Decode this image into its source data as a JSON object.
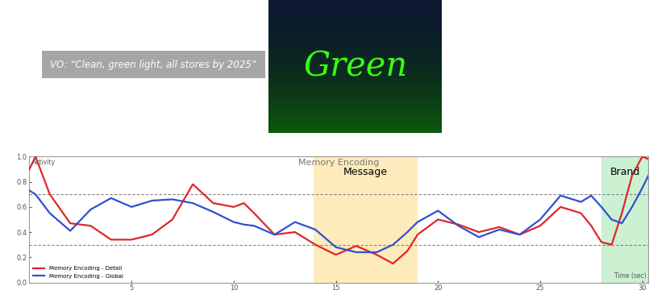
{
  "voiceover": "VO: “Clean, green light, all stores by 2025”",
  "image_text": "Green",
  "chart_data": {
    "type": "line",
    "title": "Memory Encoding",
    "y_label": "Activity",
    "x_label": "Time (sec)",
    "x": [
      0,
      0.3,
      1,
      2,
      3,
      4,
      5,
      6,
      7,
      8,
      9,
      10,
      10.5,
      11,
      12,
      13,
      14,
      15,
      16,
      17,
      17.8,
      18.5,
      19,
      20,
      21,
      22,
      23,
      24,
      25,
      26,
      27,
      27.5,
      28,
      28.5,
      29,
      29.5,
      30,
      30.3
    ],
    "series": [
      {
        "name": "Memory Encoding - Detail",
        "color": "#e0262b",
        "values": [
          0.9,
          1.0,
          0.7,
          0.47,
          0.45,
          0.34,
          0.34,
          0.38,
          0.5,
          0.78,
          0.63,
          0.6,
          0.63,
          0.55,
          0.38,
          0.4,
          0.3,
          0.22,
          0.29,
          0.22,
          0.15,
          0.25,
          0.38,
          0.5,
          0.46,
          0.4,
          0.44,
          0.38,
          0.45,
          0.6,
          0.55,
          0.45,
          0.32,
          0.3,
          0.55,
          0.85,
          1.0,
          0.98
        ]
      },
      {
        "name": "Memory Encoding - Global",
        "color": "#3050d0",
        "values": [
          0.73,
          0.7,
          0.55,
          0.41,
          0.58,
          0.67,
          0.6,
          0.65,
          0.66,
          0.63,
          0.56,
          0.48,
          0.46,
          0.45,
          0.38,
          0.48,
          0.42,
          0.28,
          0.24,
          0.24,
          0.3,
          0.4,
          0.48,
          0.57,
          0.45,
          0.36,
          0.42,
          0.38,
          0.5,
          0.69,
          0.64,
          0.69,
          0.6,
          0.5,
          0.47,
          0.6,
          0.75,
          0.85
        ]
      }
    ],
    "regions": [
      {
        "label": "Message",
        "start": 13.9,
        "end": 19.0,
        "color": "#fde9b5"
      },
      {
        "label": "Brand",
        "start": 28.0,
        "end": 30.3,
        "color": "#c6efce"
      }
    ],
    "reference_lines": [
      0.3,
      0.7
    ],
    "xlim": [
      0,
      30.3
    ],
    "xticks": [
      5,
      10,
      15,
      20,
      25,
      30
    ],
    "ylim": [
      0,
      1.0
    ],
    "yticks": [
      {
        "value": 0,
        "label": "0.0"
      },
      0.2,
      0.4,
      0.6,
      0.8,
      {
        "value": 1,
        "label": "1.0"
      }
    ],
    "legend": "lower left",
    "grid": false
  }
}
